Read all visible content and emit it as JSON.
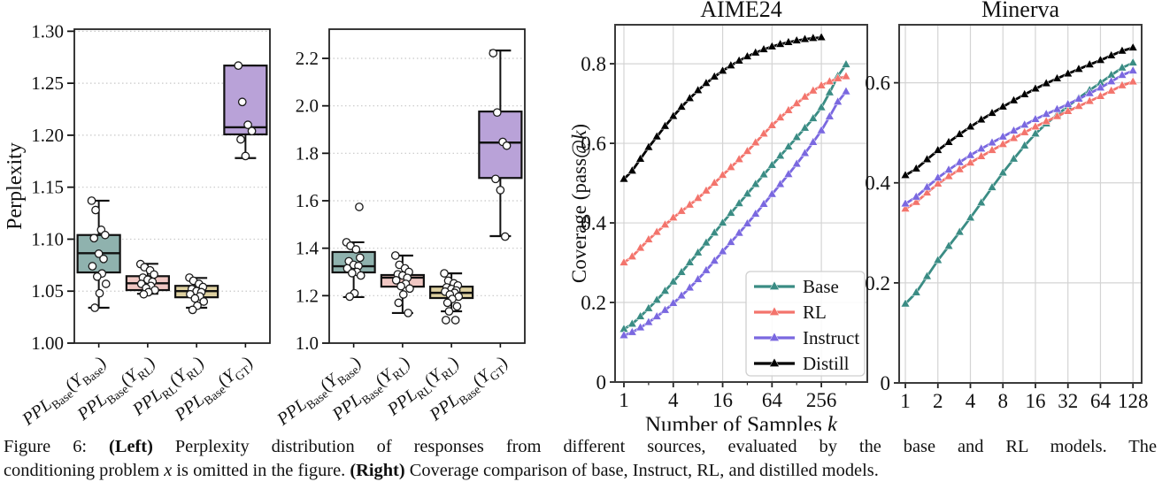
{
  "figure": {
    "caption_lines": [
      [
        {
          "t": "Figure 6:  "
        },
        {
          "t": "(Left)",
          "b": true
        },
        {
          "t": " Perplexity distribution of responses from different sources, evaluated by the base and RL models. The"
        }
      ],
      [
        {
          "t": "conditioning problem "
        },
        {
          "t": "x",
          "i": true
        },
        {
          "t": " is omitted in the figure.  "
        },
        {
          "t": "(Right)",
          "b": true
        },
        {
          "t": " Coverage comparison of base, Instruct, RL, and distilled models."
        }
      ]
    ]
  },
  "colors": {
    "base_line": "#3a8c84",
    "rl_line": "#f3746c",
    "instruct_line": "#7a68e0",
    "distill_line": "#000000",
    "box_teal": "#8fb2ae",
    "box_pink": "#f0c7c3",
    "box_tan": "#ded1a1",
    "box_purple": "#b9a2d8",
    "box_edge": "#111111",
    "grid_line": "#d4d4d4",
    "grid_dotted": "#c8c8c8",
    "spine": "#3b3b3b",
    "point_fill": "#ffffff",
    "point_edge": "#1a1a1a"
  },
  "chart_data": [
    {
      "type": "box",
      "id": "perplexity_boxplot_base_eval",
      "ylabel": "Perplexity",
      "ylim": [
        1.0,
        1.302
      ],
      "ytick_vals": [
        1.0,
        1.05,
        1.1,
        1.15,
        1.2,
        1.25,
        1.3
      ],
      "ytick_labels": [
        "1.00",
        "1.05",
        "1.10",
        "1.15",
        "1.20",
        "1.25",
        "1.30"
      ],
      "categories": [
        {
          "label": [
            {
              "t": "PPL",
              "i": true
            },
            {
              "t": "Base",
              "sub": true
            },
            {
              "t": "("
            },
            {
              "t": "Y",
              "i": true
            },
            {
              "t": "Base",
              "sub": true
            },
            {
              "t": ")"
            }
          ],
          "fill_key": "box_teal",
          "stats": {
            "lo": 1.034,
            "q1": 1.068,
            "med": 1.0865,
            "q3": 1.104,
            "hi": 1.137
          },
          "outliers": [],
          "points": [
            1.137,
            1.128,
            1.109,
            1.104,
            1.101,
            1.086,
            1.081,
            1.074,
            1.067,
            1.064,
            1.057,
            1.048,
            1.034
          ]
        },
        {
          "label": [
            {
              "t": "PPL",
              "i": true
            },
            {
              "t": "Base",
              "sub": true
            },
            {
              "t": "("
            },
            {
              "t": "Y",
              "i": true
            },
            {
              "t": "RL",
              "sub": true
            },
            {
              "t": ")"
            }
          ],
          "fill_key": "box_pink",
          "stats": {
            "lo": 1.0475,
            "q1": 1.051,
            "med": 1.0576,
            "q3": 1.0644,
            "hi": 1.0763
          },
          "outliers": [],
          "points": [
            1.076,
            1.073,
            1.07,
            1.066,
            1.063,
            1.061,
            1.059,
            1.057,
            1.055,
            1.053,
            1.051,
            1.049,
            1.047
          ]
        },
        {
          "label": [
            {
              "t": "PPL",
              "i": true
            },
            {
              "t": "RL",
              "sub": true
            },
            {
              "t": "("
            },
            {
              "t": "Y",
              "i": true
            },
            {
              "t": "RL",
              "sub": true
            },
            {
              "t": ")"
            }
          ],
          "fill_key": "box_tan",
          "stats": {
            "lo": 1.034,
            "q1": 1.0441,
            "med": 1.05,
            "q3": 1.0551,
            "hi": 1.0627
          },
          "outliers": [],
          "points": [
            1.063,
            1.06,
            1.057,
            1.054,
            1.052,
            1.05,
            1.049,
            1.047,
            1.045,
            1.043,
            1.04,
            1.036,
            1.032
          ]
        },
        {
          "label": [
            {
              "t": "PPL",
              "i": true
            },
            {
              "t": "Base",
              "sub": true
            },
            {
              "t": "("
            },
            {
              "t": "Y",
              "i": true
            },
            {
              "t": "GT",
              "sub": true
            },
            {
              "t": ")"
            }
          ],
          "fill_key": "box_purple",
          "stats": {
            "lo": 1.178,
            "q1": 1.2008,
            "med": 1.2076,
            "q3": 1.267,
            "hi": 1.267
          },
          "outliers": [],
          "points": [
            1.267,
            1.232,
            1.21,
            1.204,
            1.196,
            1.18
          ]
        }
      ]
    },
    {
      "type": "box",
      "id": "perplexity_boxplot_rl_eval",
      "ylabel": "",
      "ylim": [
        1.0,
        2.323
      ],
      "ytick_vals": [
        1.0,
        1.2,
        1.4,
        1.6,
        1.8,
        2.0,
        2.2
      ],
      "ytick_labels": [
        "1.0",
        "1.2",
        "1.4",
        "1.6",
        "1.8",
        "2.0",
        "2.2"
      ],
      "categories": [
        {
          "label": [
            {
              "t": "PPL",
              "i": true
            },
            {
              "t": "Base",
              "sub": true
            },
            {
              "t": "("
            },
            {
              "t": "Y",
              "i": true
            },
            {
              "t": "Base",
              "sub": true
            },
            {
              "t": ")"
            }
          ],
          "fill_key": "box_teal",
          "stats": {
            "lo": 1.194,
            "q1": 1.298,
            "med": 1.324,
            "q3": 1.384,
            "hi": 1.425
          },
          "outliers": [
            1.574
          ],
          "points": [
            1.425,
            1.41,
            1.395,
            1.36,
            1.345,
            1.33,
            1.325,
            1.315,
            1.3,
            1.295,
            1.285,
            1.21,
            1.196
          ]
        },
        {
          "label": [
            {
              "t": "PPL",
              "i": true
            },
            {
              "t": "Base",
              "sub": true
            },
            {
              "t": "("
            },
            {
              "t": "Y",
              "i": true
            },
            {
              "t": "RL",
              "sub": true
            },
            {
              "t": ")"
            }
          ],
          "fill_key": "box_pink",
          "stats": {
            "lo": 1.127,
            "q1": 1.238,
            "med": 1.276,
            "q3": 1.287,
            "hi": 1.369
          },
          "outliers": [],
          "points": [
            1.369,
            1.33,
            1.315,
            1.3,
            1.29,
            1.285,
            1.275,
            1.265,
            1.25,
            1.24,
            1.23,
            1.205,
            1.17,
            1.127
          ]
        },
        {
          "label": [
            {
              "t": "PPL",
              "i": true
            },
            {
              "t": "RL",
              "sub": true
            },
            {
              "t": "("
            },
            {
              "t": "Y",
              "i": true
            },
            {
              "t": "RL",
              "sub": true
            },
            {
              "t": ")"
            }
          ],
          "fill_key": "box_tan",
          "stats": {
            "lo": 1.134,
            "q1": 1.19,
            "med": 1.212,
            "q3": 1.238,
            "hi": 1.294
          },
          "outliers": [
            1.097
          ],
          "points": [
            1.294,
            1.263,
            1.252,
            1.243,
            1.235,
            1.228,
            1.222,
            1.217,
            1.212,
            1.205,
            1.196,
            1.186,
            1.17,
            1.155,
            1.134,
            1.097
          ]
        },
        {
          "label": [
            {
              "t": "PPL",
              "i": true
            },
            {
              "t": "Base",
              "sub": true
            },
            {
              "t": "("
            },
            {
              "t": "Y",
              "i": true
            },
            {
              "t": "GT",
              "sub": true
            },
            {
              "t": ")"
            }
          ],
          "fill_key": "box_purple",
          "stats": {
            "lo": 1.451,
            "q1": 1.696,
            "med": 1.845,
            "q3": 1.976,
            "hi": 2.233
          },
          "outliers": [],
          "points": [
            2.222,
            1.972,
            1.848,
            1.832,
            1.692,
            1.645,
            1.449
          ]
        }
      ]
    },
    {
      "type": "line",
      "id": "coverage_aime24",
      "title": "AIME24",
      "ylabel_segments": [
        {
          "t": "Coverage (pass@"
        },
        {
          "t": "k",
          "i": true
        },
        {
          "t": ")"
        }
      ],
      "xlabel_segments": [
        {
          "t": "Number of Samples "
        },
        {
          "t": "k",
          "i": true
        }
      ],
      "xscale": "log2",
      "xlim": [
        0.78,
        930
      ],
      "xtick_vals": [
        1,
        4,
        16,
        64,
        256
      ],
      "xtick_labels": [
        "1",
        "4",
        "16",
        "64",
        "256"
      ],
      "xminor_vals": [
        2,
        8,
        32,
        128,
        512
      ],
      "ylim": [
        0,
        0.898
      ],
      "ytick_vals": [
        0,
        0.2,
        0.4,
        0.6,
        0.8
      ],
      "ytick_labels": [
        "0",
        "0.2",
        "0.4",
        "0.6",
        "0.8"
      ],
      "legend": true,
      "series": [
        {
          "name": "Base",
          "color_key": "base_line",
          "k": [
            1,
            2,
            4,
            8,
            16,
            32,
            64,
            128,
            256,
            512
          ],
          "v": [
            0.133,
            0.185,
            0.252,
            0.325,
            0.4,
            0.473,
            0.545,
            0.615,
            0.69,
            0.798
          ]
        },
        {
          "name": "RL",
          "color_key": "rl_line",
          "k": [
            1,
            2,
            4,
            8,
            16,
            32,
            64,
            128,
            256,
            512
          ],
          "v": [
            0.3,
            0.358,
            0.413,
            0.462,
            0.52,
            0.58,
            0.645,
            0.7,
            0.745,
            0.768
          ]
        },
        {
          "name": "Instruct",
          "color_key": "instruct_line",
          "k": [
            1,
            2,
            4,
            8,
            16,
            32,
            64,
            128,
            256,
            512
          ],
          "v": [
            0.117,
            0.15,
            0.198,
            0.258,
            0.328,
            0.398,
            0.472,
            0.548,
            0.632,
            0.73
          ]
        },
        {
          "name": "Distill",
          "color_key": "distill_line",
          "k": [
            1,
            2,
            4,
            8,
            16,
            32,
            64,
            128,
            256
          ],
          "v": [
            0.51,
            0.59,
            0.668,
            0.733,
            0.782,
            0.818,
            0.843,
            0.858,
            0.866
          ]
        }
      ]
    },
    {
      "type": "line",
      "id": "coverage_minerva",
      "title": "Minerva",
      "ylabel_segments": [],
      "xlabel_segments": [],
      "xscale": "log2",
      "xlim": [
        0.876,
        154
      ],
      "xtick_vals": [
        1,
        2,
        4,
        8,
        16,
        32,
        64,
        128
      ],
      "xtick_labels": [
        "1",
        "2",
        "4",
        "8",
        "16",
        "32",
        "64",
        "128"
      ],
      "xminor_vals": [],
      "ylim": [
        0,
        0.716
      ],
      "ytick_vals": [
        0,
        0.2,
        0.4,
        0.6
      ],
      "ytick_labels": [
        "0",
        "0.2",
        "0.4",
        "0.6"
      ],
      "legend": false,
      "series": [
        {
          "name": "Base",
          "color_key": "base_line",
          "k": [
            1,
            2,
            4,
            8,
            16,
            32,
            64,
            128
          ],
          "v": [
            0.158,
            0.245,
            0.33,
            0.42,
            0.498,
            0.553,
            0.6,
            0.64
          ]
        },
        {
          "name": "RL",
          "color_key": "rl_line",
          "k": [
            1,
            2,
            4,
            8,
            16,
            32,
            64,
            128
          ],
          "v": [
            0.348,
            0.398,
            0.44,
            0.477,
            0.512,
            0.543,
            0.573,
            0.602
          ]
        },
        {
          "name": "Instruct",
          "color_key": "instruct_line",
          "k": [
            1,
            2,
            4,
            8,
            16,
            32,
            64,
            128
          ],
          "v": [
            0.358,
            0.41,
            0.455,
            0.492,
            0.527,
            0.557,
            0.59,
            0.624
          ]
        },
        {
          "name": "Distill",
          "color_key": "distill_line",
          "k": [
            1,
            2,
            4,
            8,
            16,
            32,
            64,
            128
          ],
          "v": [
            0.415,
            0.465,
            0.512,
            0.552,
            0.588,
            0.618,
            0.645,
            0.67
          ]
        }
      ]
    }
  ],
  "legend": {
    "items": [
      "Base",
      "RL",
      "Instruct",
      "Distill"
    ]
  }
}
